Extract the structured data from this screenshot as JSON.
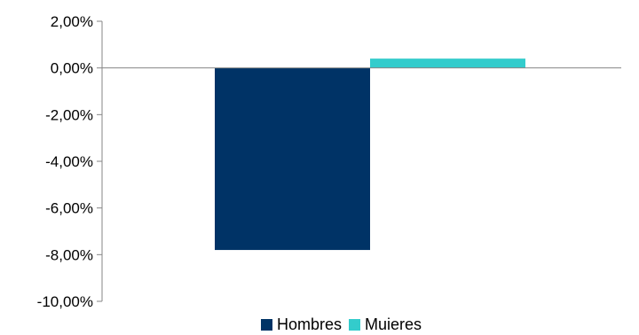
{
  "chart_data": {
    "type": "bar",
    "categories": [
      ""
    ],
    "series": [
      {
        "name": "Hombres",
        "values": [
          -7.8
        ],
        "color": "#003366"
      },
      {
        "name": "Mujeres",
        "values": [
          0.4
        ],
        "color": "#33CCCC"
      }
    ],
    "ylim": [
      -10,
      2
    ],
    "yticks": [
      2,
      0,
      -2,
      -4,
      -6,
      -8,
      -10
    ],
    "ytick_labels": [
      "2,00%",
      "0,00%",
      "-2,00%",
      "-4,00%",
      "-6,00%",
      "-8,00%",
      "-10,00%"
    ],
    "grid": false,
    "legend_position": "bottom"
  },
  "legend": {
    "hombres_label": "Hombres",
    "mujeres_label": "Muieres"
  }
}
